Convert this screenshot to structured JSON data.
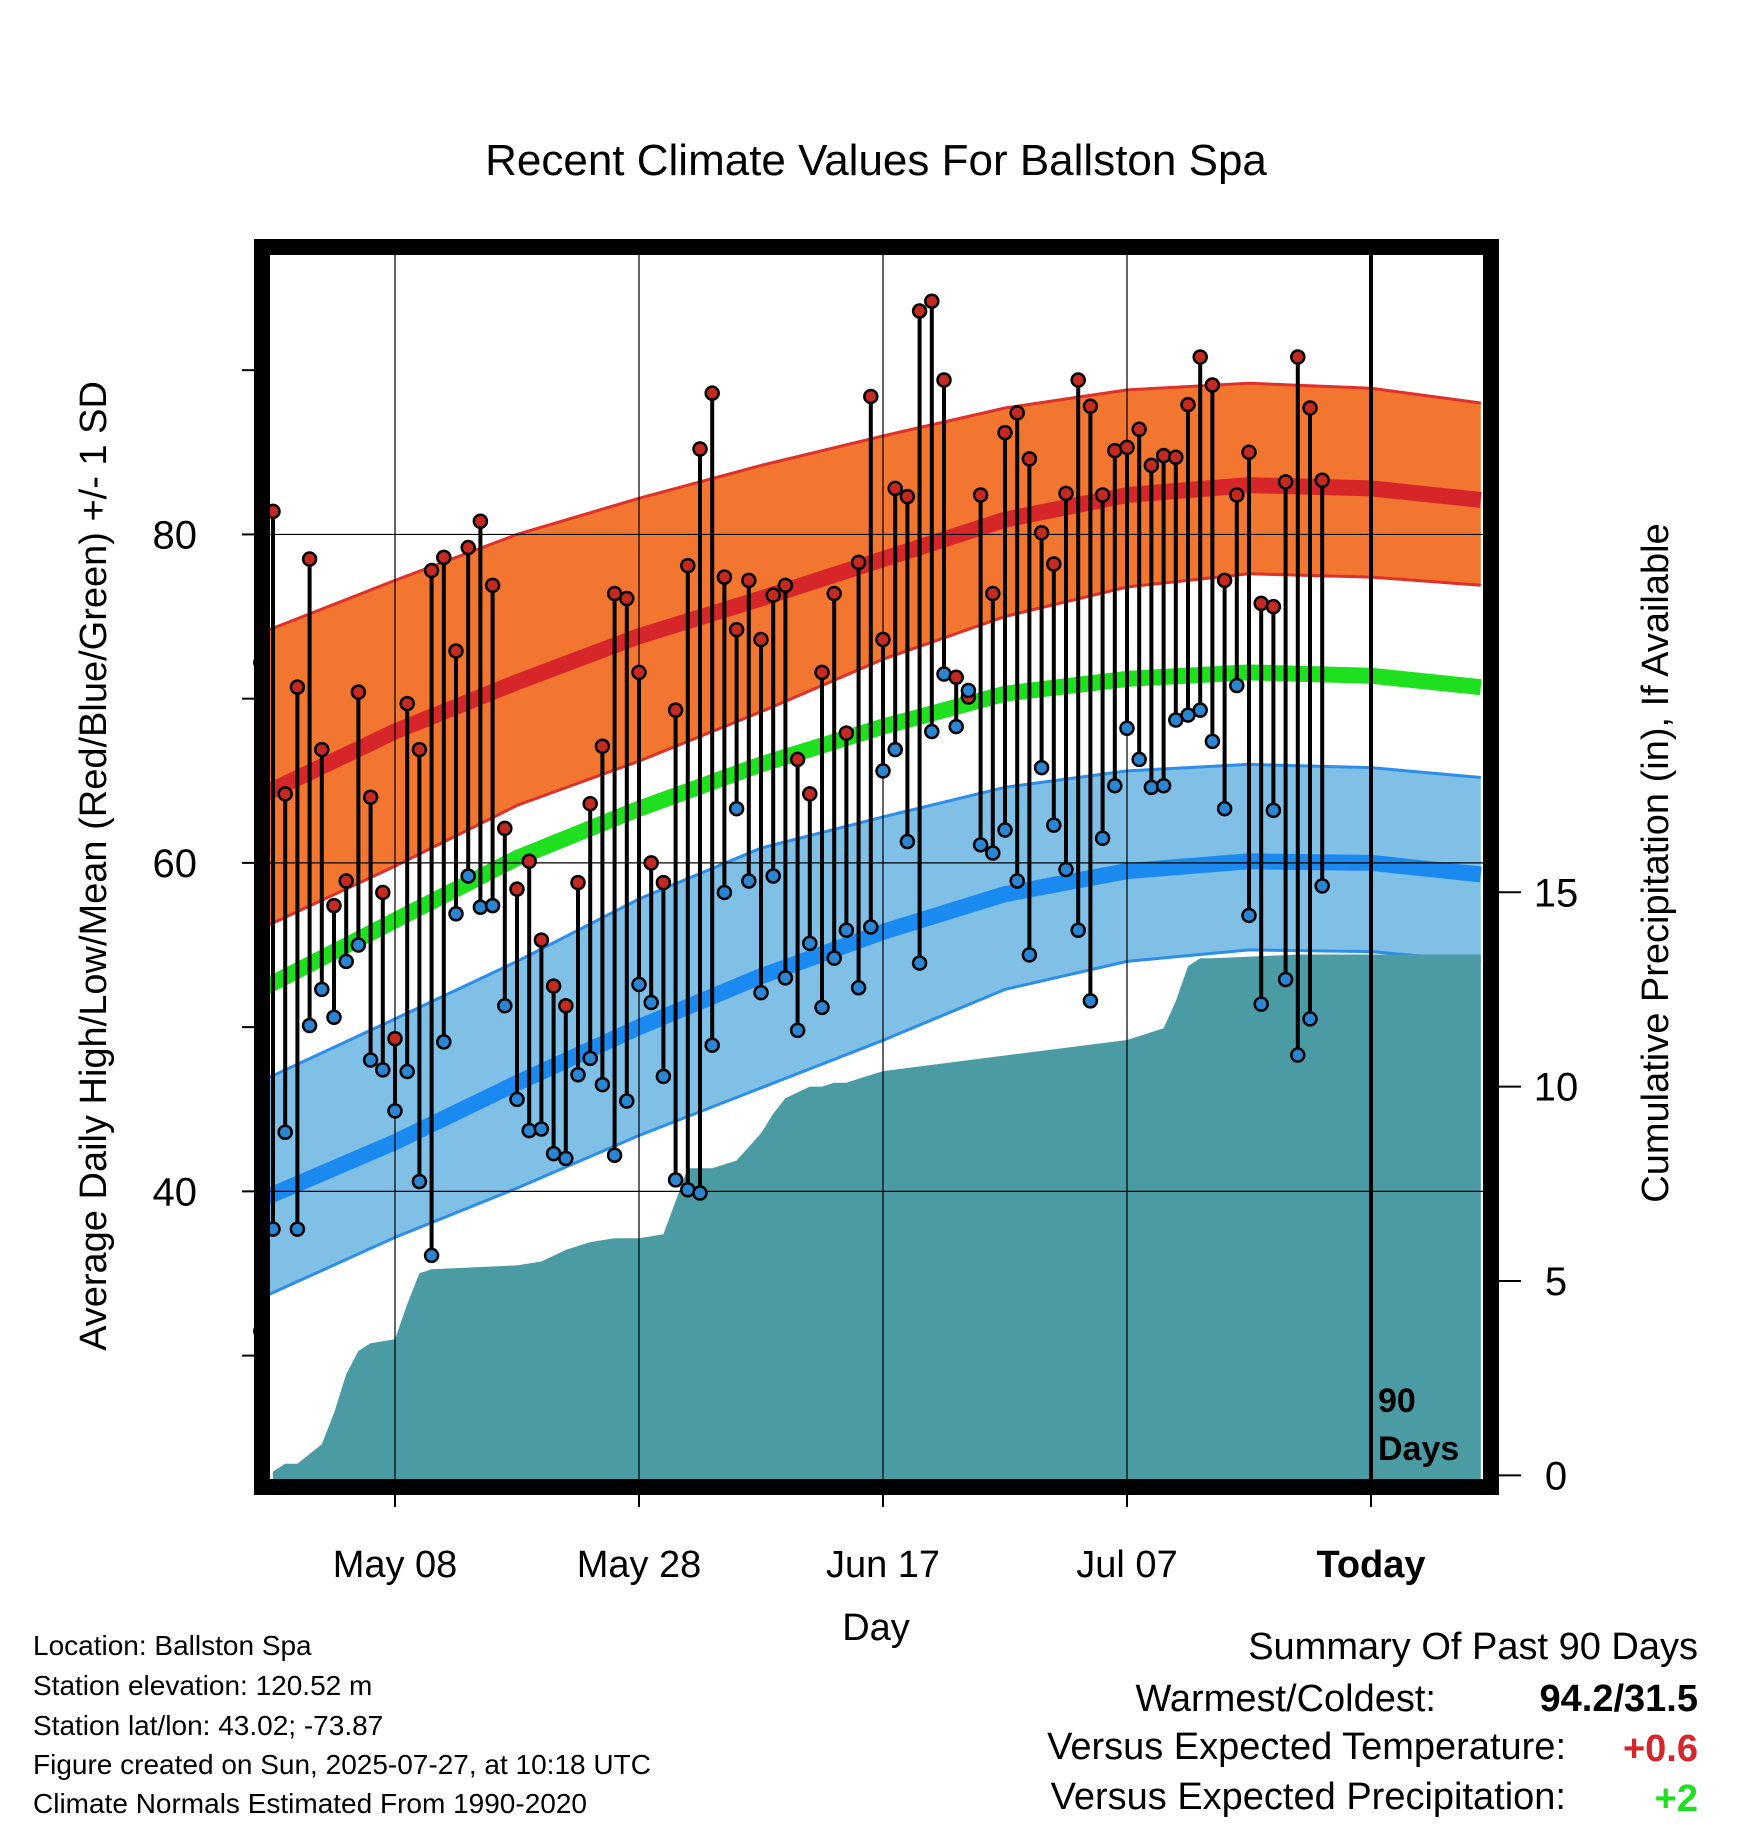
{
  "chart_data": {
    "type": "line",
    "title": "Recent Climate Values For Ballston Spa",
    "xlabel": "Day",
    "ylabel_left": "Average Daily High/Low/Mean (Red/Blue/Green) +/- 1 SD",
    "ylabel_right": "Cumulative Precipitation (in), If Available",
    "x_ticks": [
      "May 08",
      "May 28",
      "Jun 17",
      "Jul 07",
      "Today"
    ],
    "x_tick_days": [
      0,
      20,
      40,
      60,
      80
    ],
    "xlim_days": [
      -11,
      89
    ],
    "y_left_ticks": [
      40,
      60,
      80
    ],
    "ylim_left": [
      22,
      97.5
    ],
    "y_right_ticks": [
      0,
      5,
      10,
      15
    ],
    "ylim_right": [
      -0.3,
      31.6
    ],
    "grid": true,
    "today_marker": {
      "day": 80,
      "label_line1": "90",
      "label_line2": "Days"
    },
    "normals": {
      "days": [
        -11,
        0,
        10,
        20,
        30,
        40,
        50,
        60,
        70,
        80,
        89
      ],
      "high_mean": [
        64.1,
        68.0,
        71.0,
        73.8,
        76.1,
        78.5,
        80.9,
        82.4,
        83.0,
        82.8,
        82.1
      ],
      "high_sd_upper": [
        74.0,
        77.2,
        80.0,
        82.2,
        84.2,
        86.0,
        87.7,
        88.8,
        89.2,
        88.9,
        88.0
      ],
      "high_sd_lower": [
        56.0,
        59.8,
        63.5,
        66.2,
        69.2,
        72.4,
        75.0,
        76.8,
        77.6,
        77.4,
        76.9
      ],
      "mean": [
        52.3,
        56.5,
        60.3,
        63.3,
        66.0,
        68.3,
        70.3,
        71.2,
        71.6,
        71.4,
        70.7
      ],
      "low_mean": [
        39.5,
        43.0,
        46.6,
        50.0,
        53.1,
        55.8,
        58.1,
        59.5,
        60.1,
        60.0,
        59.3
      ],
      "low_sd_upper": [
        46.7,
        50.5,
        54.0,
        57.8,
        60.9,
        62.8,
        64.6,
        65.6,
        66.0,
        65.8,
        65.2
      ],
      "low_sd_lower": [
        33.5,
        37.2,
        40.2,
        43.4,
        46.3,
        49.2,
        52.3,
        54.0,
        54.7,
        54.6,
        54.0
      ]
    },
    "series": [
      {
        "name": "High",
        "values": [
          72.2,
          81.4,
          64.2,
          70.7,
          78.5,
          66.9,
          57.4,
          58.9,
          70.4,
          64.0,
          58.2,
          49.3,
          69.7,
          66.9,
          77.8,
          78.6,
          72.9,
          79.2,
          80.8,
          76.9,
          62.1,
          58.4,
          60.1,
          55.3,
          52.5,
          51.3,
          58.8,
          63.6,
          67.1,
          76.4,
          76.1,
          71.6,
          60.0,
          58.8,
          69.3,
          78.1,
          85.2,
          88.6,
          77.4,
          74.2,
          77.2,
          73.6,
          76.3,
          76.9,
          66.3,
          64.2,
          71.6,
          76.4,
          67.9,
          78.3,
          88.4,
          73.6,
          82.8,
          82.3,
          93.6,
          94.2,
          89.4,
          71.3,
          70.1,
          82.4,
          76.4,
          86.2,
          87.4,
          84.6,
          80.1,
          78.2,
          82.5,
          89.4,
          87.8,
          82.4,
          85.1,
          85.3,
          86.4,
          84.2,
          84.8,
          84.7,
          87.9,
          90.8,
          89.1,
          77.2,
          82.4,
          85.0,
          75.8,
          75.6,
          83.2,
          90.8,
          87.7,
          83.3
        ]
      },
      {
        "name": "Low",
        "values": [
          31.5,
          37.7,
          43.6,
          37.7,
          50.1,
          52.3,
          50.6,
          54.0,
          55.0,
          48.0,
          47.4,
          44.9,
          47.3,
          40.6,
          36.1,
          49.1,
          56.9,
          59.2,
          57.3,
          57.4,
          51.3,
          45.6,
          43.7,
          43.8,
          42.3,
          42.0,
          47.1,
          48.1,
          46.5,
          42.2,
          45.5,
          52.6,
          51.5,
          47.0,
          40.7,
          40.1,
          39.9,
          48.9,
          58.2,
          63.3,
          58.9,
          52.1,
          59.2,
          53.0,
          49.8,
          55.1,
          51.2,
          54.2,
          55.9,
          52.4,
          56.1,
          65.6,
          66.9,
          61.3,
          53.9,
          68.0,
          71.5,
          68.3,
          70.5,
          61.1,
          60.6,
          62.0,
          58.9,
          54.4,
          65.8,
          62.3,
          59.6,
          55.9,
          51.6,
          61.5,
          64.7,
          68.2,
          66.3,
          64.6,
          64.7,
          68.7,
          69.0,
          69.3,
          67.4,
          63.3,
          70.8,
          56.8,
          51.4,
          63.2,
          52.9,
          48.3,
          50.5,
          58.6,
          64.5,
          59.0
        ]
      }
    ],
    "series_start_day": -11,
    "precipitation": {
      "name": "Cumulative Precipitation",
      "days": [
        -10,
        -9,
        -8,
        -6,
        -5,
        -4,
        -3,
        -2,
        0,
        1,
        2,
        3,
        10,
        12,
        14,
        16,
        18,
        20,
        22,
        24,
        26,
        27,
        28,
        30,
        31,
        32,
        34,
        35,
        36,
        37,
        38,
        40,
        50,
        60,
        63,
        64,
        65,
        66,
        67,
        74,
        80,
        89
      ],
      "values": [
        0.1,
        0.3,
        0.3,
        0.8,
        1.6,
        2.6,
        3.2,
        3.4,
        3.5,
        4.4,
        5.2,
        5.3,
        5.4,
        5.5,
        5.8,
        6.0,
        6.1,
        6.1,
        6.2,
        7.9,
        7.9,
        8.0,
        8.1,
        8.8,
        9.3,
        9.7,
        10.0,
        10.0,
        10.1,
        10.1,
        10.2,
        10.4,
        10.8,
        11.2,
        11.5,
        12.2,
        13.1,
        13.3,
        13.3,
        13.4,
        13.4,
        13.4
      ]
    },
    "colors": {
      "high": "#d6262a",
      "high_band": "#f37630",
      "high_band_edge": "#e0302a",
      "mean": "#1ee01e",
      "low": "#1b8af0",
      "low_band": "#80bfe6",
      "low_band_edge": "#2c8ee8",
      "precip": "#4a9ba4",
      "high_marker": "#c42a22",
      "low_marker": "#2a86d2"
    }
  },
  "info": {
    "location": "Location: Ballston Spa",
    "elevation": "Station elevation: 120.52 m",
    "latlon": "Station lat/lon: 43.02; -73.87",
    "created": "Figure created on Sun, 2025-07-27, at 10:18 UTC",
    "normals": "Climate Normals Estimated From 1990-2020"
  },
  "summary": {
    "title": "Summary Of Past 90 Days",
    "warm_cold_label": "Warmest/Coldest:",
    "warm_cold_value": "94.2/31.5",
    "temp_label": "Versus Expected Temperature:",
    "temp_value": "+0.6",
    "temp_color": "#d6262a",
    "precip_label": "Versus Expected Precipitation:",
    "precip_value": "+2",
    "precip_color": "#1ee01e"
  }
}
